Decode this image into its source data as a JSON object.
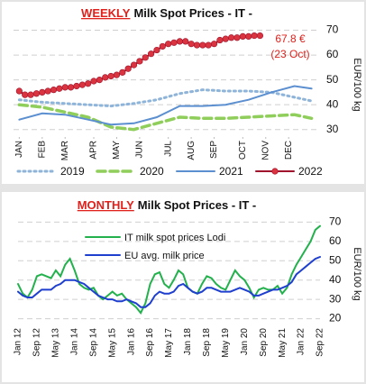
{
  "chart_data": [
    {
      "type": "line",
      "title_prefix": "WEEKLY",
      "title": "Milk Spot Prices - IT -",
      "y_label": "EUR/100 kg",
      "annotation": [
        "67.8 €",
        "(23 Oct)"
      ],
      "xlim": [
        0,
        53
      ],
      "xticks": [
        {
          "value": 1,
          "label": "JAN"
        },
        {
          "value": 5,
          "label": "FEB"
        },
        {
          "value": 9,
          "label": "MAR"
        },
        {
          "value": 14,
          "label": "APR"
        },
        {
          "value": 18,
          "label": "MAY"
        },
        {
          "value": 22,
          "label": "JUN"
        },
        {
          "value": 27,
          "label": "JUL"
        },
        {
          "value": 31,
          "label": "AUG"
        },
        {
          "value": 35,
          "label": "SEP"
        },
        {
          "value": 40,
          "label": "OCT"
        },
        {
          "value": 44,
          "label": "NOV"
        },
        {
          "value": 48,
          "label": "DEC"
        }
      ],
      "ylim": [
        27,
        72
      ],
      "yticks": [
        30,
        40,
        50,
        60,
        70
      ],
      "grid": true,
      "series": [
        {
          "name": "2019",
          "color": "#8fb4d9",
          "style": "dotted",
          "x": [
            1,
            5,
            9,
            13,
            17,
            21,
            25,
            29,
            33,
            37,
            41,
            45,
            49,
            52
          ],
          "values": [
            42,
            41,
            40.5,
            40,
            39.5,
            40.5,
            42,
            44.5,
            46,
            45.5,
            45.5,
            45,
            43,
            41.5
          ]
        },
        {
          "name": "2020",
          "color": "#8fce5a",
          "style": "dashed",
          "x": [
            1,
            5,
            9,
            13,
            17,
            21,
            25,
            29,
            33,
            37,
            41,
            45,
            49,
            52
          ],
          "values": [
            40,
            39,
            37,
            35,
            31,
            30,
            32.5,
            35,
            34.5,
            34.5,
            35,
            35.5,
            36,
            34.5
          ]
        },
        {
          "name": "2021",
          "color": "#5b8fd0",
          "style": "solid",
          "x": [
            1,
            5,
            9,
            13,
            17,
            21,
            25,
            29,
            33,
            37,
            41,
            45,
            49,
            52
          ],
          "values": [
            34,
            36.5,
            36,
            34,
            32,
            32.5,
            35,
            39.5,
            39.5,
            40,
            42,
            45,
            47.5,
            46.5
          ]
        },
        {
          "name": "2022",
          "color": "#a0122b",
          "marker_color": "#d9343f",
          "style": "solid",
          "markers": true,
          "x": [
            1,
            2,
            3,
            4,
            5,
            6,
            7,
            8,
            9,
            10,
            11,
            12,
            13,
            14,
            15,
            16,
            17,
            18,
            19,
            20,
            21,
            22,
            23,
            24,
            25,
            26,
            27,
            28,
            29,
            30,
            31,
            32,
            33,
            34,
            35,
            36,
            37,
            38,
            39,
            40,
            41,
            42,
            43
          ],
          "values": [
            45.5,
            44,
            44,
            44.5,
            45,
            45.5,
            46,
            46.5,
            47,
            47,
            47.5,
            48,
            48.5,
            49.5,
            50,
            51,
            51.5,
            52,
            53,
            54.5,
            56,
            57.5,
            59,
            60.5,
            62,
            63.5,
            64.5,
            65,
            65.5,
            65.5,
            64.5,
            64,
            64,
            64,
            64.5,
            66,
            66.5,
            67,
            67,
            67.5,
            67.5,
            67.8,
            67.8
          ]
        }
      ]
    },
    {
      "type": "line",
      "title_prefix": "MONTHLY",
      "title": "Milk Spot Prices - IT -",
      "y_label": "EUR/100 kg",
      "categories": [
        "Jan 12",
        null,
        null,
        null,
        "Sep 12",
        null,
        null,
        null,
        "May 13",
        null,
        null,
        null,
        "Jan 14",
        null,
        null,
        null,
        "Sep 14",
        null,
        null,
        null,
        "May 15",
        null,
        null,
        null,
        "Jan 16",
        null,
        null,
        null,
        "Sep 16",
        null,
        null,
        null,
        "May 17",
        null,
        null,
        null,
        "Jan 18",
        null,
        null,
        null,
        "Sep 18",
        null,
        null,
        null,
        "May 19",
        null,
        null,
        null,
        "Jan 20",
        null,
        null,
        null,
        "Sep 20",
        null,
        null,
        null,
        "May 21",
        null,
        null,
        null,
        "Jan 22",
        null,
        null,
        null,
        "Sep 22"
      ],
      "ylim": [
        17,
        73
      ],
      "yticks": [
        20,
        30,
        40,
        50,
        60,
        70
      ],
      "grid": true,
      "series": [
        {
          "name": "IT milk spot prices Lodi",
          "color": "#22b14c",
          "style": "solid",
          "values": [
            38,
            33,
            31,
            35,
            42,
            43,
            42,
            41,
            45,
            42,
            48,
            51,
            45,
            38,
            36,
            35,
            36,
            32,
            30,
            32,
            34,
            32,
            33,
            30,
            28,
            26,
            23,
            28,
            38,
            43,
            44,
            38,
            36,
            40,
            45,
            43,
            36,
            34,
            33,
            38,
            42,
            41,
            38,
            36,
            35,
            40,
            45,
            42,
            40,
            36,
            31,
            35,
            36,
            35,
            35,
            37,
            33,
            36,
            43,
            48,
            52,
            56,
            60,
            66,
            68
          ]
        },
        {
          "name": "EU avg. milk price",
          "color": "#1f3fcf",
          "style": "solid",
          "values": [
            34,
            32,
            31,
            31,
            33,
            35,
            35,
            35,
            37,
            38,
            40,
            40,
            40,
            39,
            38,
            36,
            34,
            32,
            31,
            30,
            30,
            29,
            29,
            30,
            29,
            28,
            26,
            26,
            28,
            32,
            34,
            33,
            33,
            34,
            37,
            38,
            36,
            34,
            33,
            34,
            36,
            36,
            35,
            34,
            34,
            34,
            35,
            36,
            35,
            34,
            32,
            32,
            33,
            34,
            35,
            35,
            36,
            37,
            39,
            43,
            45,
            47,
            49,
            51,
            52
          ]
        }
      ]
    }
  ]
}
